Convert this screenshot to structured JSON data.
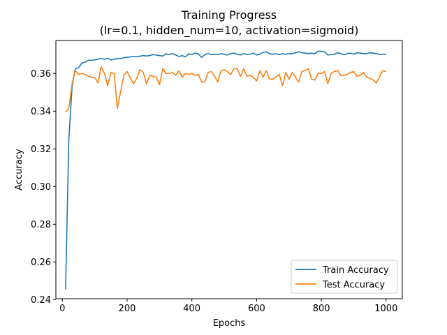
{
  "chart_data": {
    "type": "line",
    "title": "Training Progress",
    "subtitle": "(lr=0.1, hidden_num=10, activation=sigmoid)",
    "xlabel": "Epochs",
    "ylabel": "Accuracy",
    "xlim": [
      -20,
      1050
    ],
    "ylim": [
      0.2405,
      0.3775
    ],
    "xticks": [
      0,
      200,
      400,
      600,
      800,
      1000
    ],
    "yticks": [
      0.24,
      0.26,
      0.28,
      0.3,
      0.32,
      0.34,
      0.36
    ],
    "xtick_labels": [
      "0",
      "200",
      "400",
      "600",
      "800",
      "1000"
    ],
    "ytick_labels": [
      "0.24",
      "0.26",
      "0.28",
      "0.30",
      "0.32",
      "0.34",
      "0.36"
    ],
    "grid": false,
    "legend_position": "lower right",
    "x": [
      10,
      20,
      30,
      40,
      50,
      60,
      70,
      80,
      90,
      100,
      110,
      120,
      130,
      140,
      150,
      160,
      170,
      180,
      190,
      200,
      210,
      220,
      230,
      240,
      250,
      260,
      270,
      280,
      290,
      300,
      310,
      320,
      330,
      340,
      350,
      360,
      370,
      380,
      390,
      400,
      410,
      420,
      430,
      440,
      450,
      460,
      470,
      480,
      490,
      500,
      510,
      520,
      530,
      540,
      550,
      560,
      570,
      580,
      590,
      600,
      610,
      620,
      630,
      640,
      650,
      660,
      670,
      680,
      690,
      700,
      710,
      720,
      730,
      740,
      750,
      760,
      770,
      780,
      790,
      800,
      810,
      820,
      830,
      840,
      850,
      860,
      870,
      880,
      890,
      900,
      910,
      920,
      930,
      940,
      950,
      960,
      970,
      980,
      990,
      1000
    ],
    "series": [
      {
        "name": "Train Accuracy",
        "color": "#1f77b4",
        "values": [
          0.2455,
          0.325,
          0.353,
          0.3625,
          0.363,
          0.3655,
          0.366,
          0.367,
          0.367,
          0.3672,
          0.3675,
          0.368,
          0.3675,
          0.368,
          0.3672,
          0.3675,
          0.368,
          0.3678,
          0.3685,
          0.3685,
          0.3688,
          0.369,
          0.3688,
          0.3692,
          0.3695,
          0.3693,
          0.3695,
          0.37,
          0.3698,
          0.3695,
          0.3692,
          0.3705,
          0.37,
          0.3705,
          0.3698,
          0.369,
          0.3695,
          0.3688,
          0.3705,
          0.37,
          0.3708,
          0.3705,
          0.3685,
          0.37,
          0.3705,
          0.37,
          0.3702,
          0.37,
          0.3705,
          0.3702,
          0.3698,
          0.3705,
          0.3708,
          0.3702,
          0.3698,
          0.3705,
          0.37,
          0.3702,
          0.3708,
          0.3698,
          0.3702,
          0.3712,
          0.3715,
          0.3705,
          0.3702,
          0.3705,
          0.37,
          0.3705,
          0.3702,
          0.3705,
          0.3705,
          0.371,
          0.3715,
          0.371,
          0.3708,
          0.3705,
          0.3708,
          0.3705,
          0.3718,
          0.3718,
          0.3715,
          0.3698,
          0.37,
          0.3702,
          0.371,
          0.3705,
          0.37,
          0.3705,
          0.3708,
          0.3702,
          0.371,
          0.3708,
          0.3705,
          0.3705,
          0.371,
          0.3708,
          0.3705,
          0.37,
          0.3702,
          0.3702
        ]
      },
      {
        "name": "Test Accuracy",
        "color": "#ff7f0e",
        "values": [
          0.3395,
          0.3415,
          0.3545,
          0.3615,
          0.3595,
          0.36,
          0.3595,
          0.3585,
          0.358,
          0.358,
          0.355,
          0.3635,
          0.36,
          0.3535,
          0.3605,
          0.36,
          0.3415,
          0.3505,
          0.359,
          0.361,
          0.3575,
          0.3545,
          0.3575,
          0.362,
          0.3605,
          0.3545,
          0.359,
          0.3585,
          0.358,
          0.354,
          0.3625,
          0.36,
          0.36,
          0.3605,
          0.359,
          0.3615,
          0.358,
          0.36,
          0.3595,
          0.36,
          0.359,
          0.3595,
          0.3555,
          0.3555,
          0.3605,
          0.361,
          0.3585,
          0.3555,
          0.3615,
          0.362,
          0.361,
          0.3595,
          0.3625,
          0.3625,
          0.3585,
          0.3625,
          0.3585,
          0.359,
          0.358,
          0.356,
          0.3615,
          0.358,
          0.3615,
          0.357,
          0.357,
          0.358,
          0.3595,
          0.3535,
          0.3605,
          0.357,
          0.3605,
          0.358,
          0.3555,
          0.361,
          0.3615,
          0.3625,
          0.357,
          0.3565,
          0.36,
          0.36,
          0.361,
          0.3545,
          0.36,
          0.361,
          0.3615,
          0.359,
          0.359,
          0.3595,
          0.3605,
          0.361,
          0.3585,
          0.359,
          0.3605,
          0.358,
          0.3575,
          0.3565,
          0.355,
          0.3585,
          0.3615,
          0.361
        ]
      }
    ]
  }
}
